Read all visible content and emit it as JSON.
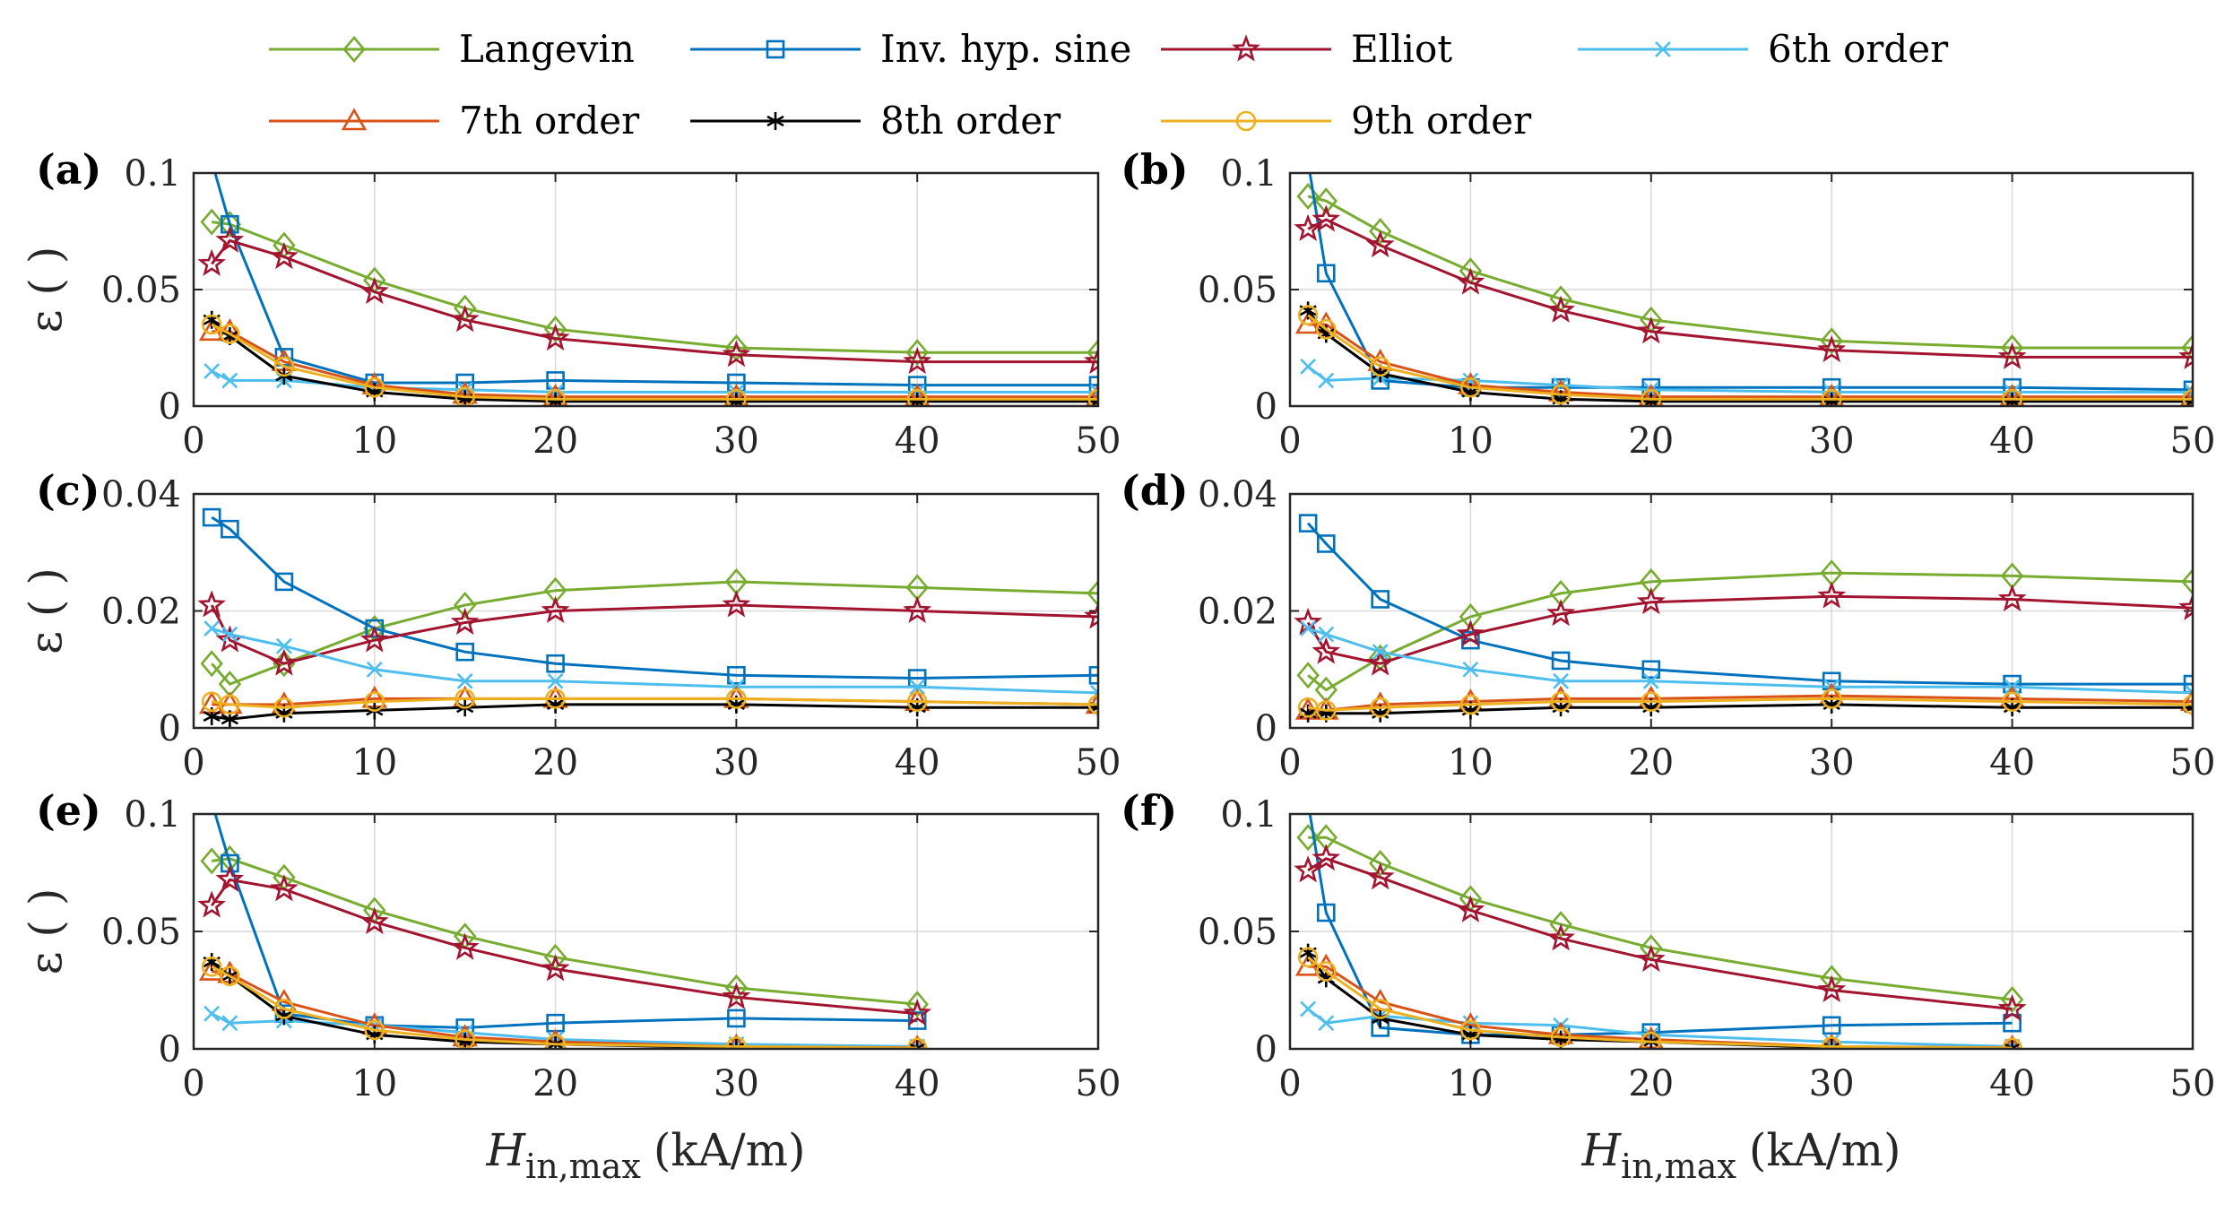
{
  "legend": {
    "entries": [
      {
        "name": "Langevin",
        "color": "#77AC30",
        "marker": "diamond"
      },
      {
        "name": "Inv. hyp. sine",
        "color": "#0072BD",
        "marker": "square"
      },
      {
        "name": "Elliot",
        "color": "#A2142F",
        "marker": "star"
      },
      {
        "name": "6th order",
        "color": "#4DBEEE",
        "marker": "x"
      },
      {
        "name": "7th order",
        "color": "#D95319",
        "marker": "triangle"
      },
      {
        "name": "8th order",
        "color": "#000000",
        "marker": "asterisk"
      },
      {
        "name": "9th order",
        "color": "#EDB120",
        "marker": "circle"
      }
    ]
  },
  "axes": {
    "ylabel": "ε ( )",
    "xlabel_symbol": "H",
    "xlabel_subscript": "in,max",
    "xlabel_unit": "(kA/m)",
    "xlim": [
      0,
      50
    ],
    "xticks": [
      "0",
      "10",
      "20",
      "30",
      "40",
      "50"
    ],
    "grid": true
  },
  "chart_data": [
    {
      "panel": "(a)",
      "type": "line",
      "ylim": [
        0,
        0.1
      ],
      "yticks": [
        "0",
        "0.05",
        "0.1"
      ],
      "x": [
        1,
        2,
        5,
        10,
        15,
        20,
        30,
        40,
        50
      ],
      "series": [
        {
          "name": "Langevin",
          "values": [
            0.079,
            0.078,
            0.069,
            0.054,
            0.042,
            0.033,
            0.025,
            0.023,
            0.023
          ]
        },
        {
          "name": "Inv. hyp. sine",
          "values": [
            0.105,
            0.078,
            0.021,
            0.01,
            0.01,
            0.011,
            0.01,
            0.009,
            0.009
          ]
        },
        {
          "name": "Elliot",
          "values": [
            0.061,
            0.071,
            0.064,
            0.049,
            0.037,
            0.029,
            0.022,
            0.019,
            0.019
          ]
        },
        {
          "name": "6th order",
          "values": [
            0.015,
            0.011,
            0.011,
            0.008,
            0.007,
            0.006,
            0.006,
            0.006,
            0.006
          ]
        },
        {
          "name": "7th order",
          "values": [
            0.032,
            0.032,
            0.019,
            0.009,
            0.005,
            0.004,
            0.004,
            0.004,
            0.004
          ]
        },
        {
          "name": "8th order",
          "values": [
            0.037,
            0.03,
            0.013,
            0.006,
            0.003,
            0.002,
            0.002,
            0.002,
            0.002
          ]
        },
        {
          "name": "9th order",
          "values": [
            0.035,
            0.031,
            0.017,
            0.008,
            0.004,
            0.003,
            0.003,
            0.003,
            0.003
          ]
        }
      ]
    },
    {
      "panel": "(b)",
      "type": "line",
      "ylim": [
        0,
        0.1
      ],
      "yticks": [
        "0",
        "0.05",
        "0.1"
      ],
      "x": [
        1,
        2,
        5,
        10,
        15,
        20,
        30,
        40,
        50
      ],
      "series": [
        {
          "name": "Langevin",
          "values": [
            0.09,
            0.088,
            0.075,
            0.058,
            0.046,
            0.037,
            0.028,
            0.025,
            0.025
          ]
        },
        {
          "name": "Inv. hyp. sine",
          "values": [
            0.105,
            0.057,
            0.011,
            0.008,
            0.008,
            0.008,
            0.008,
            0.008,
            0.007
          ]
        },
        {
          "name": "Elliot",
          "values": [
            0.076,
            0.08,
            0.069,
            0.053,
            0.041,
            0.032,
            0.024,
            0.021,
            0.021
          ]
        },
        {
          "name": "6th order",
          "values": [
            0.017,
            0.011,
            0.012,
            0.011,
            0.009,
            0.007,
            0.006,
            0.006,
            0.006
          ]
        },
        {
          "name": "7th order",
          "values": [
            0.035,
            0.035,
            0.019,
            0.009,
            0.006,
            0.004,
            0.004,
            0.004,
            0.004
          ]
        },
        {
          "name": "8th order",
          "values": [
            0.041,
            0.031,
            0.014,
            0.006,
            0.003,
            0.002,
            0.002,
            0.002,
            0.002
          ]
        },
        {
          "name": "9th order",
          "values": [
            0.039,
            0.033,
            0.017,
            0.008,
            0.005,
            0.003,
            0.003,
            0.003,
            0.003
          ]
        }
      ]
    },
    {
      "panel": "(c)",
      "type": "line",
      "ylim": [
        0,
        0.04
      ],
      "yticks": [
        "0",
        "0.02",
        "0.04"
      ],
      "x": [
        1,
        2,
        5,
        10,
        15,
        20,
        30,
        40,
        50
      ],
      "series": [
        {
          "name": "Langevin",
          "values": [
            0.011,
            0.0075,
            0.011,
            0.017,
            0.021,
            0.0235,
            0.025,
            0.024,
            0.023
          ]
        },
        {
          "name": "Inv. hyp. sine",
          "values": [
            0.036,
            0.034,
            0.025,
            0.017,
            0.013,
            0.011,
            0.009,
            0.0085,
            0.009
          ]
        },
        {
          "name": "Elliot",
          "values": [
            0.021,
            0.015,
            0.011,
            0.015,
            0.018,
            0.02,
            0.021,
            0.02,
            0.019
          ]
        },
        {
          "name": "6th order",
          "values": [
            0.017,
            0.016,
            0.014,
            0.01,
            0.008,
            0.008,
            0.007,
            0.007,
            0.006
          ]
        },
        {
          "name": "7th order",
          "values": [
            0.004,
            0.004,
            0.004,
            0.005,
            0.005,
            0.005,
            0.005,
            0.0045,
            0.004
          ]
        },
        {
          "name": "8th order",
          "values": [
            0.002,
            0.0015,
            0.0025,
            0.003,
            0.0035,
            0.004,
            0.004,
            0.0035,
            0.0035
          ]
        },
        {
          "name": "9th order",
          "values": [
            0.0045,
            0.004,
            0.0035,
            0.0045,
            0.005,
            0.005,
            0.005,
            0.0045,
            0.004
          ]
        }
      ]
    },
    {
      "panel": "(d)",
      "type": "line",
      "ylim": [
        0,
        0.04
      ],
      "yticks": [
        "0",
        "0.02",
        "0.04"
      ],
      "x": [
        1,
        2,
        5,
        10,
        15,
        20,
        30,
        40,
        50
      ],
      "series": [
        {
          "name": "Langevin",
          "values": [
            0.009,
            0.0065,
            0.012,
            0.019,
            0.023,
            0.025,
            0.0265,
            0.026,
            0.025
          ]
        },
        {
          "name": "Inv. hyp. sine",
          "values": [
            0.035,
            0.0315,
            0.022,
            0.015,
            0.0115,
            0.01,
            0.008,
            0.0075,
            0.0075
          ]
        },
        {
          "name": "Elliot",
          "values": [
            0.018,
            0.013,
            0.011,
            0.016,
            0.0195,
            0.0215,
            0.0225,
            0.022,
            0.0205
          ]
        },
        {
          "name": "6th order",
          "values": [
            0.017,
            0.016,
            0.013,
            0.01,
            0.008,
            0.008,
            0.007,
            0.007,
            0.006
          ]
        },
        {
          "name": "7th order",
          "values": [
            0.003,
            0.003,
            0.004,
            0.0045,
            0.005,
            0.005,
            0.0055,
            0.005,
            0.0045
          ]
        },
        {
          "name": "8th order",
          "values": [
            0.0025,
            0.0025,
            0.0025,
            0.003,
            0.0035,
            0.0035,
            0.004,
            0.0035,
            0.0035
          ]
        },
        {
          "name": "9th order",
          "values": [
            0.0035,
            0.003,
            0.0035,
            0.004,
            0.0045,
            0.0045,
            0.005,
            0.0045,
            0.004
          ]
        }
      ]
    },
    {
      "panel": "(e)",
      "type": "line",
      "ylim": [
        0,
        0.1
      ],
      "yticks": [
        "0",
        "0.05",
        "0.1"
      ],
      "x": [
        1,
        2,
        5,
        10,
        15,
        20,
        30,
        40
      ],
      "series": [
        {
          "name": "Langevin",
          "values": [
            0.08,
            0.081,
            0.073,
            0.059,
            0.048,
            0.039,
            0.026,
            0.019
          ]
        },
        {
          "name": "Inv. hyp. sine",
          "values": [
            0.105,
            0.079,
            0.015,
            0.01,
            0.009,
            0.011,
            0.013,
            0.012
          ]
        },
        {
          "name": "Elliot",
          "values": [
            0.061,
            0.072,
            0.068,
            0.054,
            0.043,
            0.034,
            0.022,
            0.015
          ]
        },
        {
          "name": "6th order",
          "values": [
            0.015,
            0.011,
            0.012,
            0.01,
            0.007,
            0.004,
            0.002,
            0.001
          ]
        },
        {
          "name": "7th order",
          "values": [
            0.033,
            0.032,
            0.02,
            0.01,
            0.005,
            0.003,
            0.001,
            0.0005
          ]
        },
        {
          "name": "8th order",
          "values": [
            0.037,
            0.031,
            0.014,
            0.006,
            0.003,
            0.002,
            0.0005,
            0.0003
          ]
        },
        {
          "name": "9th order",
          "values": [
            0.035,
            0.031,
            0.017,
            0.008,
            0.004,
            0.002,
            0.001,
            0.0004
          ]
        }
      ]
    },
    {
      "panel": "(f)",
      "type": "line",
      "ylim": [
        0,
        0.1
      ],
      "yticks": [
        "0",
        "0.05",
        "0.1"
      ],
      "x": [
        1,
        2,
        5,
        10,
        15,
        20,
        30,
        40
      ],
      "series": [
        {
          "name": "Langevin",
          "values": [
            0.09,
            0.09,
            0.079,
            0.064,
            0.053,
            0.043,
            0.03,
            0.021
          ]
        },
        {
          "name": "Inv. hyp. sine",
          "values": [
            0.105,
            0.058,
            0.009,
            0.006,
            0.006,
            0.007,
            0.01,
            0.011
          ]
        },
        {
          "name": "Elliot",
          "values": [
            0.076,
            0.081,
            0.073,
            0.059,
            0.047,
            0.038,
            0.025,
            0.017
          ]
        },
        {
          "name": "6th order",
          "values": [
            0.017,
            0.011,
            0.014,
            0.011,
            0.01,
            0.006,
            0.003,
            0.001
          ]
        },
        {
          "name": "7th order",
          "values": [
            0.035,
            0.035,
            0.02,
            0.01,
            0.006,
            0.004,
            0.001,
            0.0005
          ]
        },
        {
          "name": "8th order",
          "values": [
            0.041,
            0.03,
            0.013,
            0.006,
            0.004,
            0.003,
            0.0005,
            0.0003
          ]
        },
        {
          "name": "9th order",
          "values": [
            0.039,
            0.033,
            0.017,
            0.008,
            0.005,
            0.003,
            0.001,
            0.0004
          ]
        }
      ]
    }
  ]
}
